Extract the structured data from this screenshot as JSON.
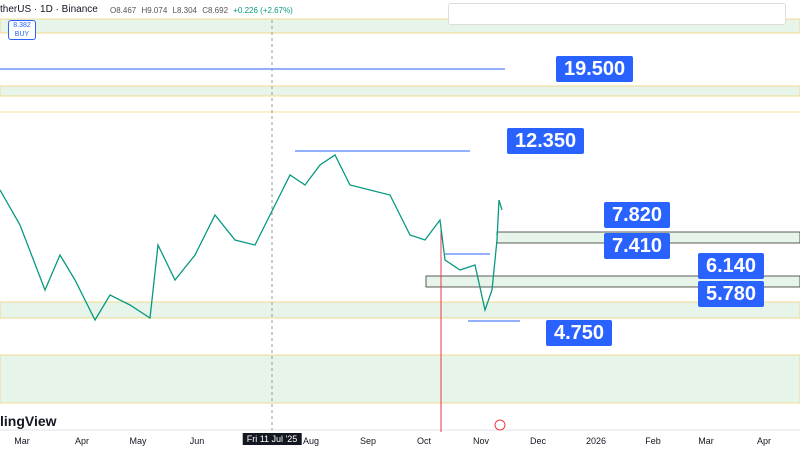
{
  "header": {
    "symbol": "therUS · 1D · Binance",
    "ohlc": {
      "open": "O8.467",
      "high": "H9.074",
      "low": "L8.304",
      "close": "C8.692",
      "change": "+0.226 (+2.67%)"
    },
    "buy_price": "8.382",
    "buy_label": "BUY"
  },
  "price_levels": [
    "19.500",
    "12.350",
    "7.820",
    "7.410",
    "6.140",
    "5.780",
    "4.750"
  ],
  "time_axis": [
    "Mar",
    "Apr",
    "May",
    "Jun",
    "Fri 11 Jul '25",
    "Aug",
    "Sep",
    "Oct",
    "Nov",
    "Dec",
    "2026",
    "Feb",
    "Mar",
    "Apr"
  ],
  "logo": "lingView"
}
